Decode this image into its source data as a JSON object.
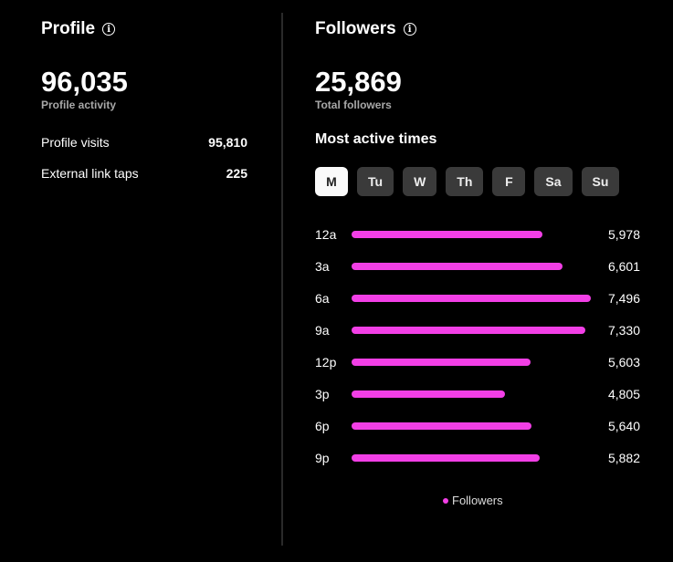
{
  "profile": {
    "title": "Profile",
    "total": "96,035",
    "total_label": "Profile activity",
    "rows": [
      {
        "label": "Profile visits",
        "value": "95,810"
      },
      {
        "label": "External link taps",
        "value": "225"
      }
    ]
  },
  "followers": {
    "title": "Followers",
    "total": "25,869",
    "total_label": "Total followers",
    "most_active_label": "Most active times",
    "days": [
      "M",
      "Tu",
      "W",
      "Th",
      "F",
      "Sa",
      "Su"
    ],
    "selected_day": "M",
    "legend": "Followers",
    "accent": "#f23fe6"
  },
  "chart_data": {
    "type": "bar",
    "orientation": "horizontal",
    "categories": [
      "12a",
      "3a",
      "6a",
      "9a",
      "12p",
      "3p",
      "6p",
      "9p"
    ],
    "series": [
      {
        "name": "Followers",
        "values": [
          5978,
          6601,
          7496,
          7330,
          5603,
          4805,
          5640,
          5882
        ]
      }
    ],
    "labels": [
      "5,978",
      "6,601",
      "7,496",
      "7,330",
      "5,603",
      "4,805",
      "5,640",
      "5,882"
    ]
  }
}
